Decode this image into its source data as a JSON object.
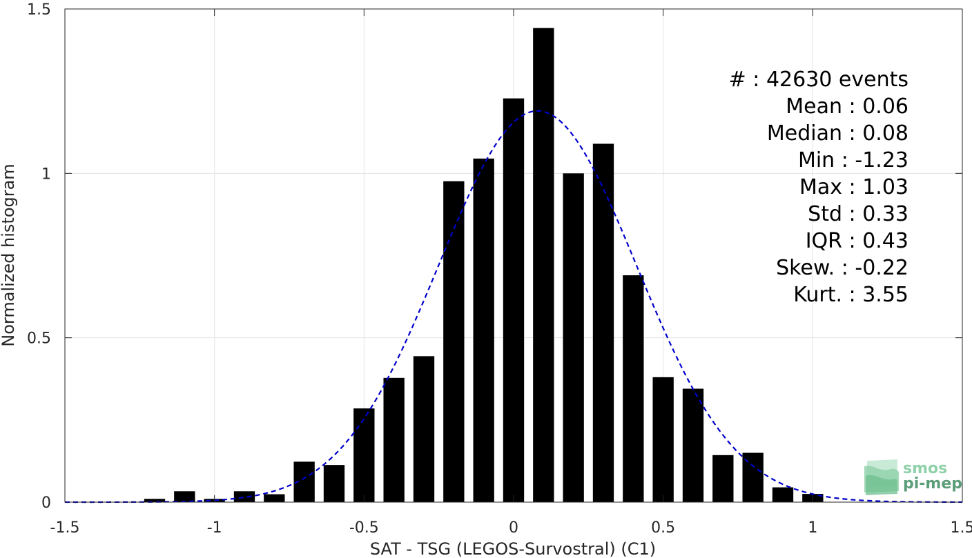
{
  "chart_data": {
    "type": "bar",
    "xlabel": "SAT - TSG (LEGOS-Survostral) (C1)",
    "ylabel": "Normalized histogram",
    "xlim": [
      -1.5,
      1.5
    ],
    "ylim": [
      0,
      1.5
    ],
    "xticks": [
      -1.5,
      -1,
      -0.5,
      0,
      0.5,
      1,
      1.5
    ],
    "xtick_labels": [
      "-1.5",
      "-1",
      "-0.5",
      "0",
      "0.5",
      "1",
      "1.5"
    ],
    "yticks": [
      0,
      0.5,
      1,
      1.5
    ],
    "ytick_labels": [
      "0",
      "0.5",
      "1",
      "1.5"
    ],
    "grid": true,
    "bin_width": 0.1,
    "bar_width": 0.07,
    "bars": {
      "x": [
        -1.2,
        -1.1,
        -1.0,
        -0.9,
        -0.8,
        -0.7,
        -0.6,
        -0.5,
        -0.4,
        -0.3,
        -0.2,
        -0.1,
        0.0,
        0.1,
        0.2,
        0.3,
        0.4,
        0.5,
        0.6,
        0.7,
        0.8,
        0.9,
        1.0
      ],
      "values": [
        0.01,
        0.033,
        0.01,
        0.033,
        0.024,
        0.123,
        0.113,
        0.285,
        0.378,
        0.444,
        0.976,
        1.045,
        1.228,
        1.442,
        1.0,
        1.09,
        0.69,
        0.38,
        0.345,
        0.143,
        0.15,
        0.045,
        0.025
      ]
    },
    "fit_curve": {
      "type": "gaussian",
      "style": "dashed",
      "color": "#0000cc",
      "peak": 1.19,
      "mean": 0.08,
      "std": 0.33,
      "x_range": [
        -1.5,
        1.5
      ]
    },
    "stats": [
      {
        "label": "#  : 42630 events"
      },
      {
        "label": "Mean : 0.06"
      },
      {
        "label": "Median : 0.08"
      },
      {
        "label": "Min : -1.23"
      },
      {
        "label": "Max : 1.03"
      },
      {
        "label": "Std : 0.33"
      },
      {
        "label": "IQR : 0.43"
      },
      {
        "label": "Skew. : -0.22"
      },
      {
        "label": "Kurt. : 3.55"
      }
    ]
  },
  "logo": {
    "line1": "smos",
    "line2": "pi-mep",
    "color_light": "#8fd1a9",
    "color_dark": "#5a9d78"
  }
}
